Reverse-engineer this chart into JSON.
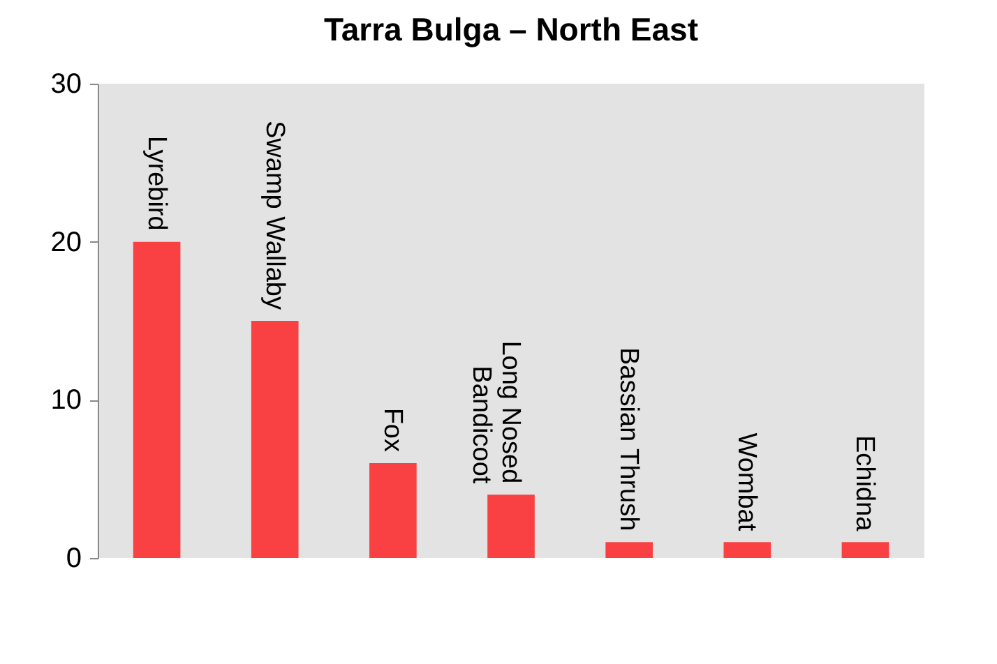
{
  "chart_data": {
    "type": "bar",
    "title": "Tarra Bulga – North East",
    "categories": [
      "Lyrebird",
      "Swamp Wallaby",
      "Fox",
      "Long Nosed Bandicoot",
      "Bassian Thrush",
      "Wombat",
      "Echidna"
    ],
    "values": [
      20,
      15,
      6,
      4,
      1,
      1,
      1
    ],
    "color": "#f94144",
    "ylim": [
      0,
      30
    ],
    "yticks": [
      0,
      10,
      20,
      30
    ],
    "grid": false
  }
}
